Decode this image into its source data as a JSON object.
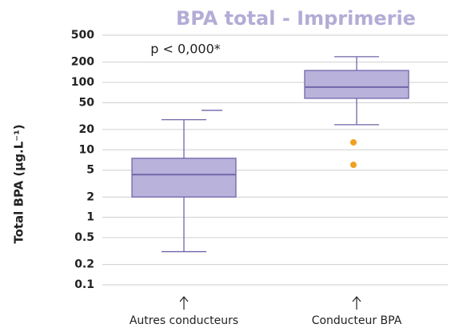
{
  "chart_data": {
    "type": "box",
    "title": "BPA total - Imprimerie",
    "y_label": "Total BPA (µg.L⁻¹)",
    "annotation": "p < 0,000*",
    "categories": [
      "Autres conducteurs",
      "Conducteur BPA"
    ],
    "boxes": [
      {
        "whislo": 0.31,
        "q1": 2,
        "med": 4.3,
        "q3": 7.5,
        "whishi": 28,
        "fliers": [
          38.5
        ]
      },
      {
        "whislo": 23.6,
        "q1": 58,
        "med": 85,
        "q3": 150,
        "whishi": 240,
        "fliers": [
          12.9,
          6
        ]
      }
    ],
    "flier_markers": [
      "dash",
      "dot"
    ],
    "box_color": "#b9b3dc",
    "line_color": "#6f66a9",
    "flier_color": "#f0a020",
    "title_color": "#b3acd6",
    "log_y": true,
    "grid": true,
    "ylim": [
      0.1,
      500
    ],
    "yticks": [
      0.1,
      0.2,
      0.5,
      1,
      2,
      5,
      10,
      20,
      50,
      100,
      200,
      500
    ]
  }
}
